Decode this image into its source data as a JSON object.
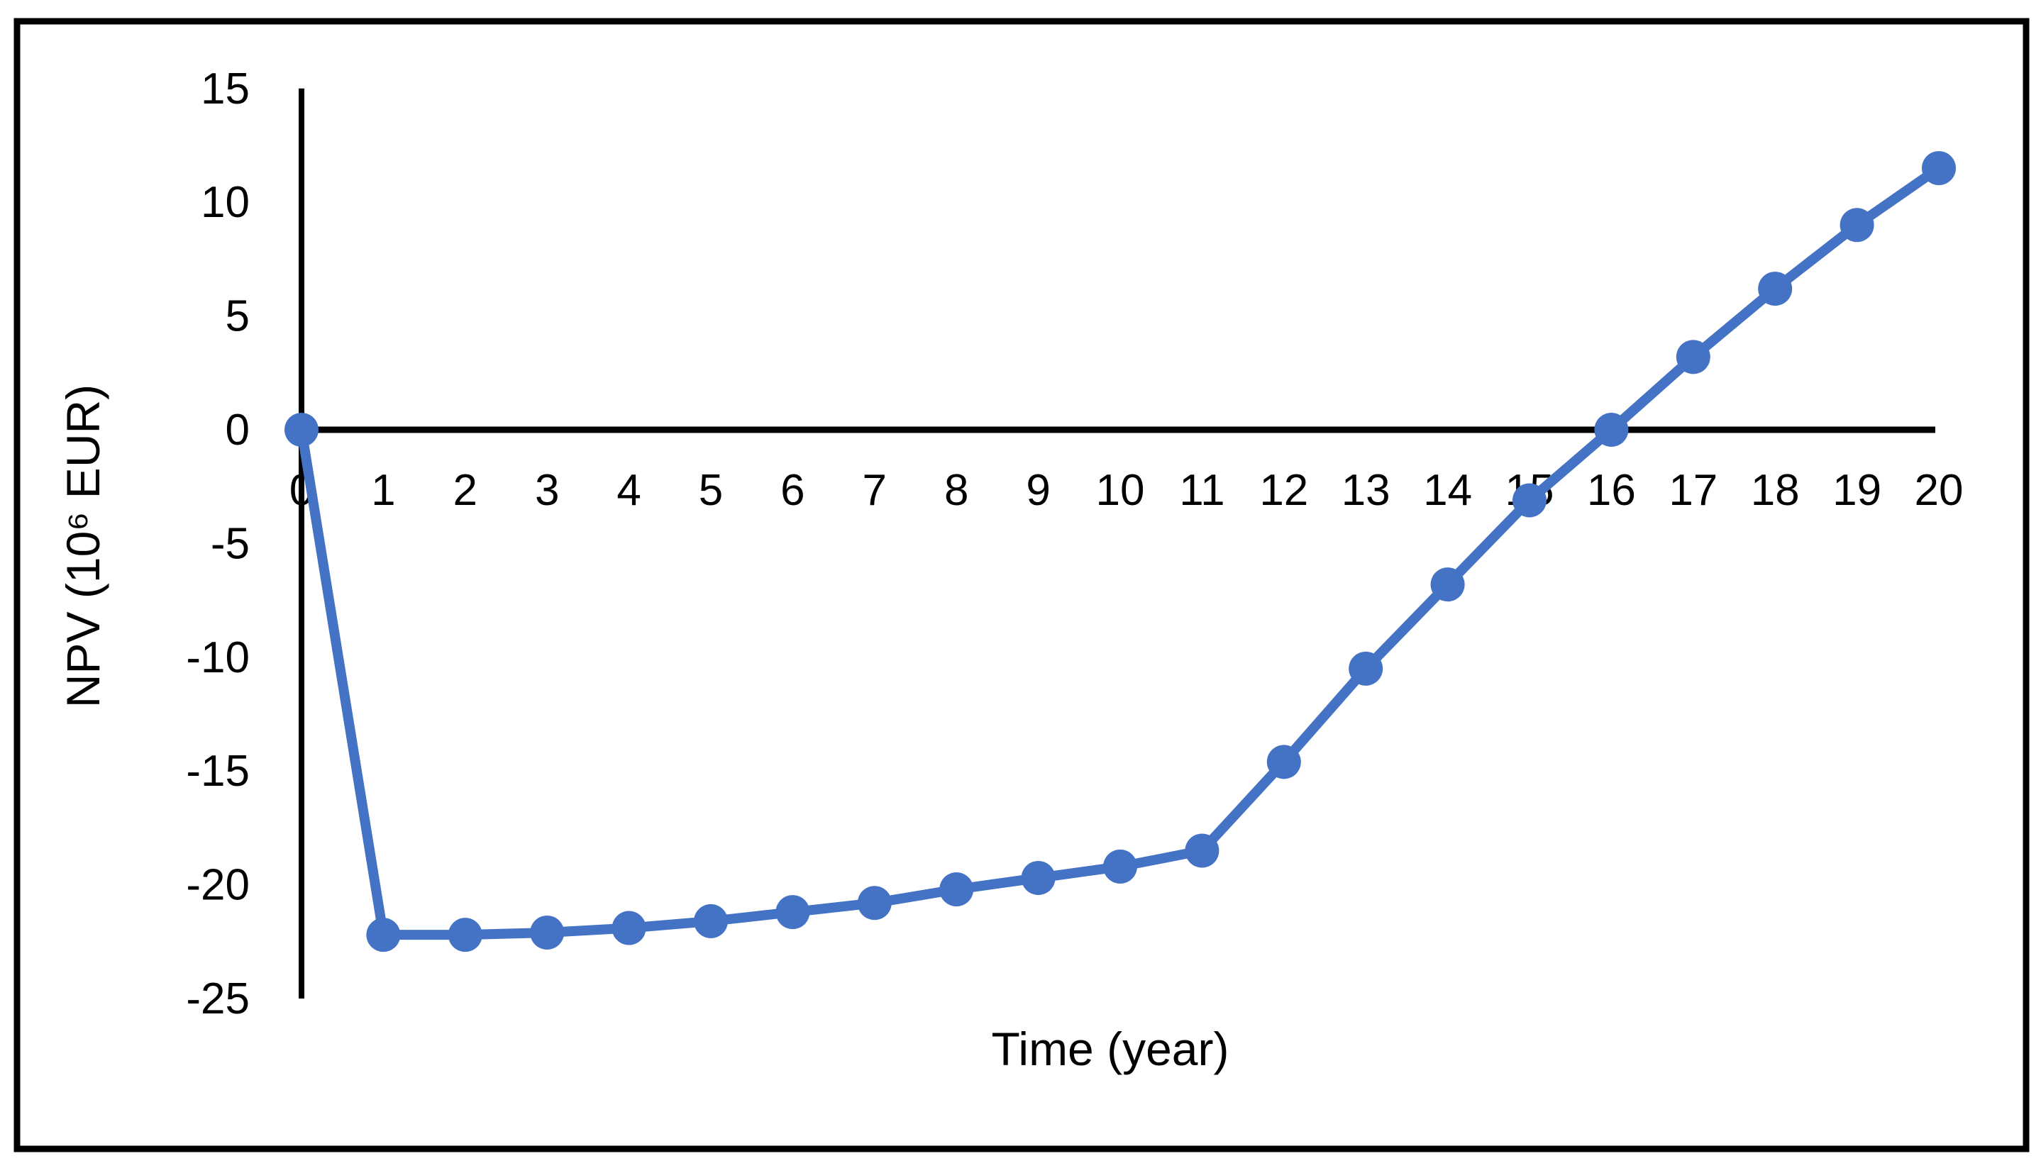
{
  "figure": {
    "background": "#ffffff",
    "border_color": "#000000",
    "axis_color": "#000000",
    "text_color": "#000000"
  },
  "chart_data": {
    "type": "line",
    "title": "",
    "xlabel": "Time (year)",
    "ylabel": "NPV (10⁶ EUR)",
    "x": [
      0,
      1,
      2,
      3,
      4,
      5,
      6,
      7,
      8,
      9,
      10,
      11,
      12,
      13,
      14,
      15,
      16,
      17,
      18,
      19,
      20
    ],
    "y": [
      0,
      -22.2,
      -22.2,
      -22.1,
      -21.9,
      -21.6,
      -21.2,
      -20.8,
      -20.2,
      -19.7,
      -19.2,
      -18.5,
      -14.6,
      -10.5,
      -6.8,
      -3.1,
      0,
      3.2,
      6.2,
      9.0,
      11.5
    ],
    "x_ticks": [
      0,
      1,
      2,
      3,
      4,
      5,
      6,
      7,
      8,
      9,
      10,
      11,
      12,
      13,
      14,
      15,
      16,
      17,
      18,
      19,
      20
    ],
    "y_ticks": [
      15,
      10,
      5,
      0,
      -5,
      -10,
      -15,
      -20,
      -25
    ],
    "xlim": [
      0,
      20
    ],
    "ylim": [
      -25,
      15
    ],
    "grid": false,
    "legend": false,
    "line_color": "#4472C4",
    "marker": "circle",
    "zero_crossing_year": 16
  }
}
